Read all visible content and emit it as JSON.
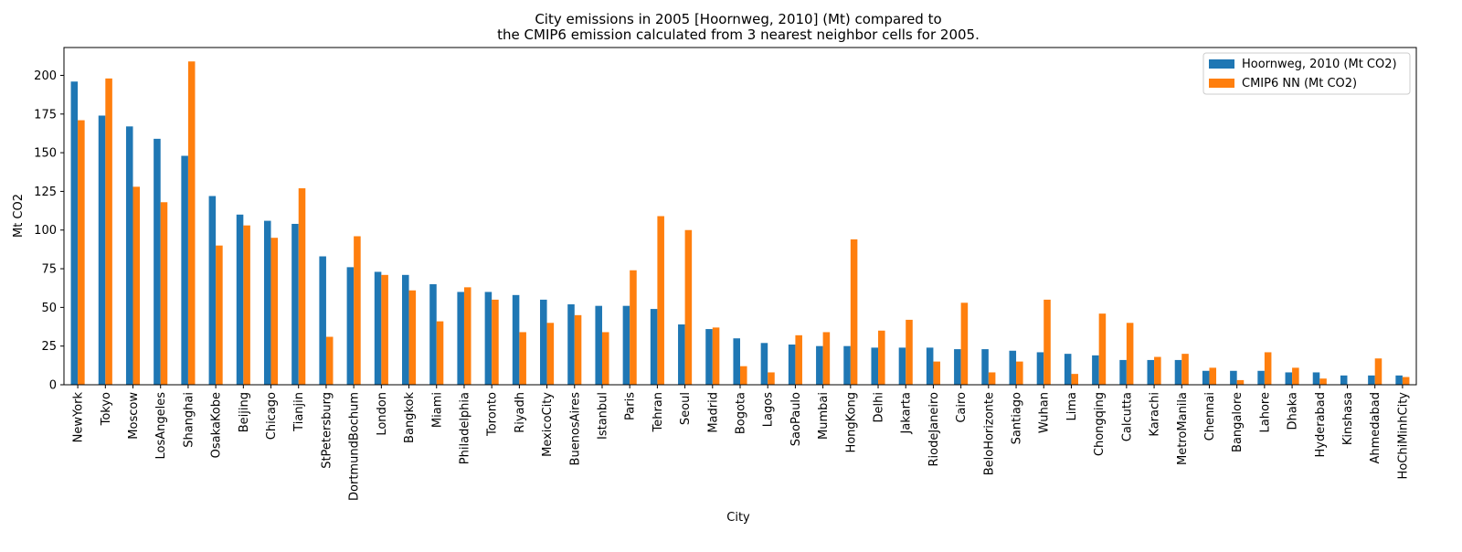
{
  "chart_data": {
    "type": "bar",
    "title": "City emissions in 2005 [Hoornweg, 2010] (Mt) compared to",
    "subtitle": "the CMIP6 emission calculated from 3 nearest neighbor cells for 2005.",
    "xlabel": "City",
    "ylabel": "Mt CO2",
    "ylim": [
      0,
      218
    ],
    "yticks": [
      0,
      25,
      50,
      75,
      100,
      125,
      150,
      175,
      200
    ],
    "grid": false,
    "legend_position": "top-right",
    "categories": [
      "NewYork",
      "Tokyo",
      "Moscow",
      "LosAngeles",
      "Shanghai",
      "OsakaKobe",
      "Beijing",
      "Chicago",
      "Tianjin",
      "StPetersburg",
      "DortmundBochum",
      "London",
      "Bangkok",
      "Miami",
      "Philadelphia",
      "Toronto",
      "Riyadh",
      "MexicoCity",
      "BuenosAires",
      "Istanbul",
      "Paris",
      "Tehran",
      "Seoul",
      "Madrid",
      "Bogota",
      "Lagos",
      "SaoPaulo",
      "Mumbai",
      "HongKong",
      "Delhi",
      "Jakarta",
      "RiodeJaneiro",
      "Cairo",
      "BeloHorizonte",
      "Santiago",
      "Wuhan",
      "Lima",
      "Chongqing",
      "Calcutta",
      "Karachi",
      "MetroManila",
      "Chennai",
      "Bangalore",
      "Lahore",
      "Dhaka",
      "Hyderabad",
      "Kinshasa",
      "Ahmedabad",
      "HoChiMinhCity"
    ],
    "series": [
      {
        "name": "Hoornweg, 2010 (Mt CO2)",
        "color": "#1f77b4",
        "values": [
          196,
          174,
          167,
          159,
          148,
          122,
          110,
          106,
          104,
          83,
          76,
          73,
          71,
          65,
          60,
          60,
          58,
          55,
          52,
          51,
          51,
          49,
          39,
          36,
          30,
          27,
          26,
          25,
          25,
          24,
          24,
          24,
          23,
          23,
          22,
          21,
          20,
          19,
          16,
          16,
          16,
          9,
          9,
          9,
          8,
          8,
          6,
          6,
          6
        ]
      },
      {
        "name": "CMIP6 NN (Mt CO2)",
        "color": "#ff7f0e",
        "values": [
          171,
          198,
          128,
          118,
          209,
          90,
          103,
          95,
          127,
          31,
          96,
          71,
          61,
          41,
          63,
          55,
          34,
          40,
          45,
          34,
          74,
          109,
          100,
          37,
          12,
          8,
          32,
          34,
          94,
          35,
          42,
          15,
          53,
          8,
          15,
          55,
          7,
          46,
          40,
          18,
          20,
          11,
          3,
          21,
          11,
          4,
          0,
          17,
          5
        ]
      }
    ]
  }
}
